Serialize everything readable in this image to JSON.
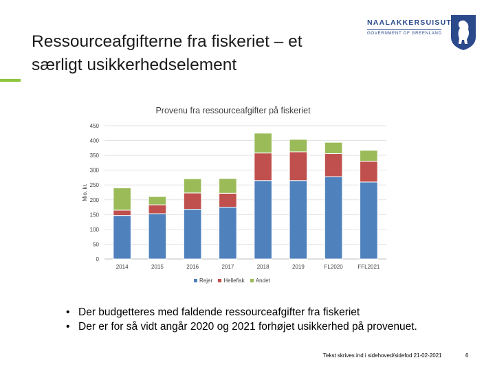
{
  "slide": {
    "title_line1": "Ressourceafgifterne fra fiskeriet – et",
    "title_line2": "særligt usikkerhedselement",
    "logo_line1": "NAALAKKERSUISUT",
    "logo_line2": "GOVERNMENT OF GREENLAND",
    "bullets": [
      "Der budgetteres med faldende ressourceafgifter fra fiskeriet",
      "Der er for så vidt angår 2020 og 2021 forhøjet usikkerhed på provenuet."
    ],
    "footer": "Tekst skrives ind i sidehoved/sidefod 21-02-2021",
    "page_number": "6"
  },
  "chart_data": {
    "type": "bar",
    "stacked": true,
    "title": "Provenu fra ressourceafgifter på fiskeriet",
    "ylabel": "Mio. kr.",
    "ylim": [
      0,
      450
    ],
    "yticks": [
      0,
      50,
      100,
      150,
      200,
      250,
      300,
      350,
      400,
      450
    ],
    "grid": true,
    "legend_position": "bottom",
    "categories": [
      "2014",
      "2015",
      "2016",
      "2017",
      "2018",
      "2019",
      "FL2020",
      "FFL2021"
    ],
    "series": [
      {
        "name": "Rejer",
        "color": "#4f81bd",
        "values": [
          147,
          153,
          168,
          175,
          265,
          265,
          278,
          260
        ]
      },
      {
        "name": "Hellefisk",
        "color": "#c0504d",
        "values": [
          18,
          30,
          55,
          47,
          93,
          97,
          78,
          70
        ]
      },
      {
        "name": "Andet",
        "color": "#9bbb59",
        "values": [
          75,
          28,
          48,
          50,
          67,
          42,
          38,
          37
        ]
      }
    ]
  }
}
